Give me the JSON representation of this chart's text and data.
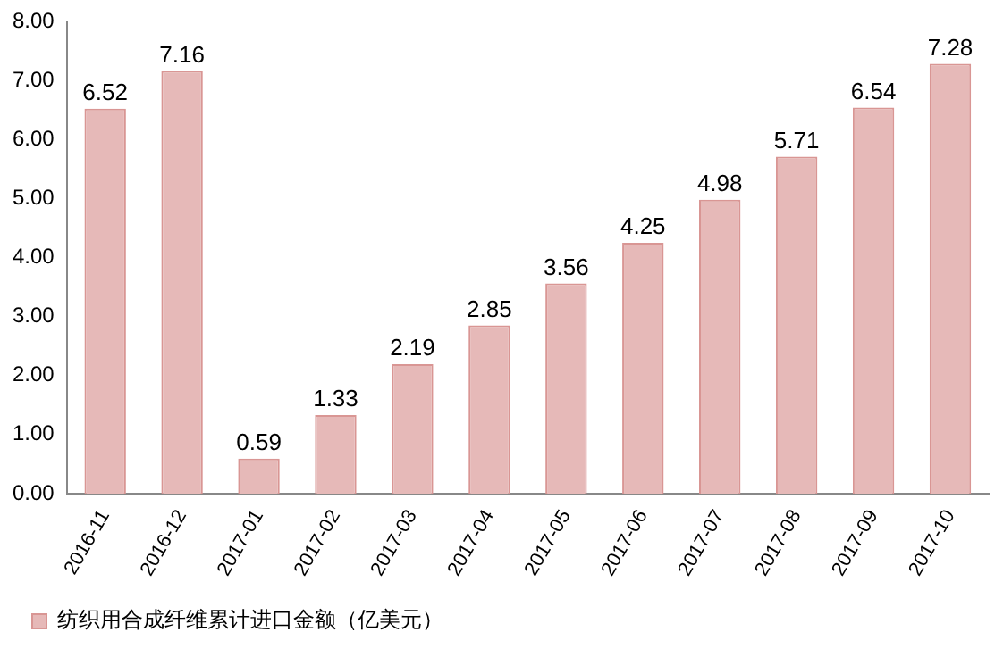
{
  "chart_data": {
    "type": "bar",
    "categories": [
      "2016-11",
      "2016-12",
      "2017-01",
      "2017-02",
      "2017-03",
      "2017-04",
      "2017-05",
      "2017-06",
      "2017-07",
      "2017-08",
      "2017-09",
      "2017-10"
    ],
    "series": [
      {
        "name": "纺织用合成纤维累计进口金额（亿美元）",
        "color": "#e6b9b8",
        "values": [
          6.52,
          7.16,
          0.59,
          1.33,
          2.19,
          2.85,
          3.56,
          4.25,
          4.98,
          5.71,
          6.54,
          7.28
        ]
      }
    ],
    "ylim": [
      0,
      8
    ],
    "yticks": [
      {
        "value": 0,
        "label": "0.00"
      },
      {
        "value": 1,
        "label": "1.00"
      },
      {
        "value": 2,
        "label": "2.00"
      },
      {
        "value": 3,
        "label": "3.00"
      },
      {
        "value": 4,
        "label": "4.00"
      },
      {
        "value": 5,
        "label": "5.00"
      },
      {
        "value": 6,
        "label": "6.00"
      },
      {
        "value": 7,
        "label": "7.00"
      },
      {
        "value": 8,
        "label": "8.00"
      }
    ],
    "grid": false,
    "legend": "bottom",
    "data_labels": true
  }
}
